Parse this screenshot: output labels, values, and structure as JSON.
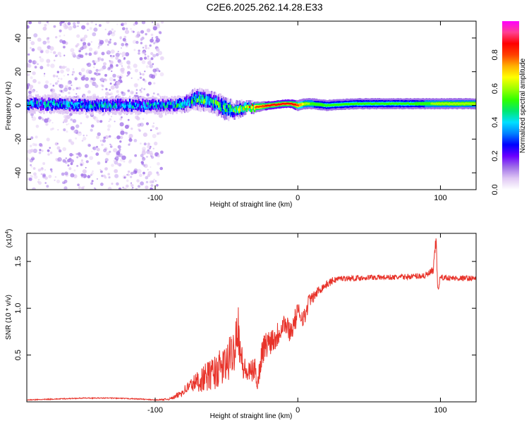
{
  "figure_title": "C2E6.2025.262.14.28.E33",
  "colors": {
    "snr_line": "#e8332a",
    "axis": "#000000",
    "background": "#ffffff",
    "colorbar": [
      "#ffffff",
      "#e0c8f4",
      "#a070e8",
      "#6a00ff",
      "#0000ff",
      "#0080ff",
      "#00e0ff",
      "#00e870",
      "#30ff00",
      "#a0ff00",
      "#ffff00",
      "#ffb000",
      "#ff4000",
      "#ff0000",
      "#ff4090",
      "#ff00ff"
    ]
  },
  "chart_data": [
    {
      "type": "heatmap",
      "title": "C2E6.2025.262.14.28.E33",
      "xlabel": "Height of straight line (km)",
      "ylabel": "Frequency (Hz)",
      "xlim": [
        -190,
        125
      ],
      "ylim": [
        -50,
        50
      ],
      "xticks": [
        -100,
        0,
        100
      ],
      "xtick_labels": [
        "-100",
        "0",
        "100"
      ],
      "yticks": [
        -40,
        -20,
        0,
        20,
        40
      ],
      "ytick_labels": [
        "-40",
        "-20",
        "0",
        "20",
        "40"
      ],
      "colorbar": {
        "label": "Normalized spectral amplitude",
        "range": [
          0,
          1
        ],
        "ticks": [
          0.0,
          0.2,
          0.4,
          0.6,
          0.8
        ],
        "tick_labels": [
          "0.0",
          "0.2",
          "0.4",
          "0.6",
          "0.8"
        ]
      },
      "ridge": {
        "x": [
          -190,
          -150,
          -110,
          -90,
          -80,
          -70,
          -60,
          -50,
          -45,
          -40,
          -35,
          -30,
          -20,
          -10,
          -5,
          0,
          5,
          10,
          20,
          40,
          60,
          80,
          100,
          125
        ],
        "freq": [
          1,
          0,
          0,
          0,
          1,
          4,
          2,
          -2,
          -3,
          -2,
          -1,
          -1,
          0,
          1,
          1,
          0,
          1,
          1,
          0,
          1,
          1,
          1,
          1,
          1
        ],
        "amplitude": [
          0.35,
          0.35,
          0.35,
          0.35,
          0.4,
          0.45,
          0.45,
          0.45,
          0.5,
          0.5,
          0.65,
          0.8,
          0.85,
          0.85,
          0.9,
          0.8,
          0.6,
          0.55,
          0.5,
          0.5,
          0.5,
          0.5,
          0.6,
          0.6
        ],
        "half_width_hz": [
          3,
          3,
          3,
          3,
          3,
          4,
          4,
          4,
          3,
          3,
          2,
          2,
          1.5,
          1.5,
          1.5,
          2,
          2,
          2,
          2,
          2,
          2,
          2,
          2,
          2
        ],
        "noise_region_x": [
          -190,
          -95
        ],
        "noise_amplitude": 0.12
      }
    },
    {
      "type": "line",
      "xlabel": "Height of straight line (km)",
      "ylabel": "SNR (10 * v/v)",
      "y_scale_label": "(x10",
      "y_scale_exponent": "4",
      "y_scale_suffix": ")",
      "xlim": [
        -190,
        125
      ],
      "ylim": [
        0,
        1.8
      ],
      "xticks": [
        -100,
        0,
        100
      ],
      "xtick_labels": [
        "-100",
        "0",
        "100"
      ],
      "yticks": [
        0.5,
        1.0,
        1.5
      ],
      "ytick_labels": [
        "0.5",
        "1.0",
        "1.5"
      ],
      "series": [
        {
          "name": "SNR",
          "x": [
            -190,
            -170,
            -150,
            -130,
            -110,
            -100,
            -90,
            -85,
            -80,
            -75,
            -70,
            -65,
            -60,
            -55,
            -50,
            -45,
            -42,
            -40,
            -38,
            -35,
            -30,
            -28,
            -25,
            -20,
            -15,
            -10,
            -5,
            0,
            5,
            8,
            10,
            15,
            20,
            25,
            30,
            40,
            50,
            60,
            70,
            80,
            90,
            95,
            97,
            98,
            100,
            110,
            125
          ],
          "y": [
            0.02,
            0.03,
            0.04,
            0.04,
            0.03,
            0.02,
            0.03,
            0.06,
            0.12,
            0.18,
            0.22,
            0.26,
            0.3,
            0.35,
            0.4,
            0.55,
            0.85,
            0.5,
            0.35,
            0.3,
            0.35,
            0.2,
            0.55,
            0.65,
            0.7,
            0.85,
            0.75,
            0.95,
            0.9,
            1.1,
            1.1,
            1.2,
            1.25,
            1.3,
            1.32,
            1.32,
            1.33,
            1.33,
            1.33,
            1.34,
            1.35,
            1.4,
            1.75,
            1.2,
            1.33,
            1.32,
            1.32
          ],
          "noise_amplitude": [
            0.005,
            0.005,
            0.005,
            0.005,
            0.005,
            0.005,
            0.01,
            0.03,
            0.05,
            0.08,
            0.12,
            0.15,
            0.18,
            0.2,
            0.22,
            0.25,
            0.3,
            0.2,
            0.15,
            0.12,
            0.12,
            0.12,
            0.15,
            0.15,
            0.15,
            0.12,
            0.12,
            0.12,
            0.1,
            0.08,
            0.06,
            0.05,
            0.04,
            0.04,
            0.03,
            0.03,
            0.03,
            0.03,
            0.03,
            0.03,
            0.04,
            0.05,
            0.08,
            0.06,
            0.03,
            0.03,
            0.03
          ]
        }
      ]
    }
  ]
}
